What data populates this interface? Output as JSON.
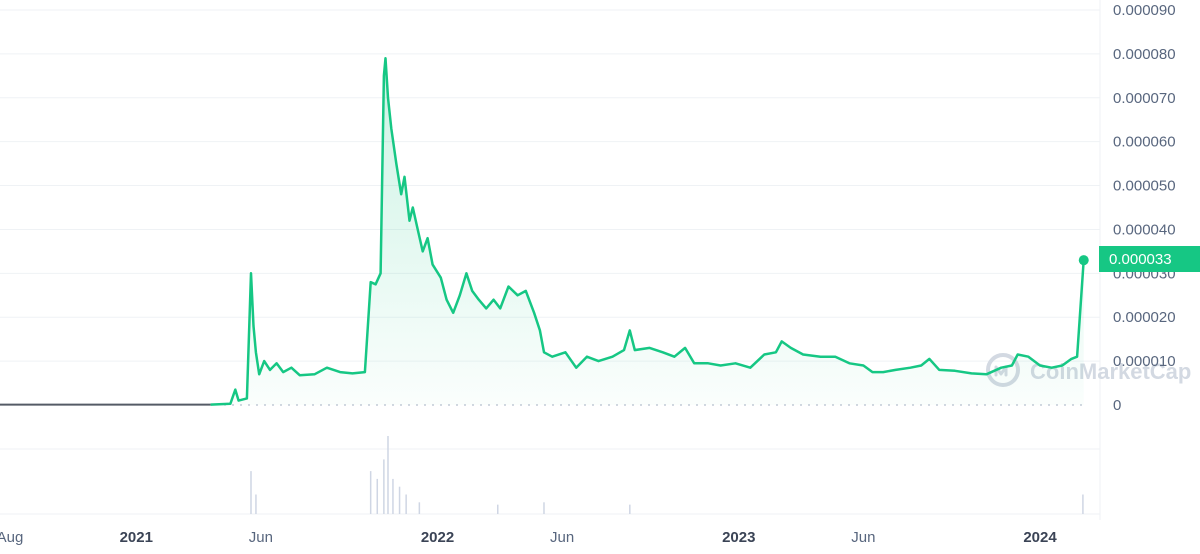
{
  "chart_data": {
    "type": "area",
    "title": "",
    "xlabel": "",
    "ylabel": "",
    "ylim": [
      0,
      9e-05
    ],
    "grid": true,
    "y_ticks": [
      "0",
      "0.000010",
      "0.000020",
      "0.000030",
      "0.000040",
      "0.000050",
      "0.000060",
      "0.000070",
      "0.000080",
      "0.000090"
    ],
    "y_tick_values": [
      0,
      1e-05,
      2e-05,
      3e-05,
      4e-05,
      5e-05,
      6e-05,
      7e-05,
      8e-05,
      9e-05
    ],
    "x_ticks": [
      {
        "label": "Aug",
        "date": "2020-08-01",
        "major": false
      },
      {
        "label": "2021",
        "date": "2021-01-01",
        "major": true
      },
      {
        "label": "Jun",
        "date": "2021-06-01",
        "major": false
      },
      {
        "label": "2022",
        "date": "2022-01-01",
        "major": true
      },
      {
        "label": "Jun",
        "date": "2022-06-01",
        "major": false
      },
      {
        "label": "2023",
        "date": "2023-01-01",
        "major": true
      },
      {
        "label": "Jun",
        "date": "2023-06-01",
        "major": false
      },
      {
        "label": "2024",
        "date": "2024-01-01",
        "major": true
      }
    ],
    "current_price_label": "0.000033",
    "current_price": 3.3e-05,
    "series": [
      {
        "values": [
          [
            "2020-07-01",
            1e-07
          ],
          [
            "2020-10-01",
            1e-07
          ],
          [
            "2021-01-01",
            1e-07
          ],
          [
            "2021-04-01",
            1e-07
          ],
          [
            "2021-04-25",
            3e-07
          ],
          [
            "2021-05-01",
            3.5e-06
          ],
          [
            "2021-05-05",
            1e-06
          ],
          [
            "2021-05-15",
            1.5e-06
          ],
          [
            "2021-05-20",
            3e-05
          ],
          [
            "2021-05-23",
            1.8e-05
          ],
          [
            "2021-05-26",
            1.2e-05
          ],
          [
            "2021-05-30",
            7e-06
          ],
          [
            "2021-06-05",
            1e-05
          ],
          [
            "2021-06-12",
            8e-06
          ],
          [
            "2021-06-20",
            9.5e-06
          ],
          [
            "2021-06-28",
            7.5e-06
          ],
          [
            "2021-07-08",
            8.5e-06
          ],
          [
            "2021-07-18",
            6.8e-06
          ],
          [
            "2021-08-05",
            7e-06
          ],
          [
            "2021-08-20",
            8.5e-06
          ],
          [
            "2021-09-05",
            7.5e-06
          ],
          [
            "2021-09-20",
            7.2e-06
          ],
          [
            "2021-10-05",
            7.5e-06
          ],
          [
            "2021-10-12",
            2.8e-05
          ],
          [
            "2021-10-18",
            2.75e-05
          ],
          [
            "2021-10-24",
            3e-05
          ],
          [
            "2021-10-28",
            7.5e-05
          ],
          [
            "2021-10-30",
            7.9e-05
          ],
          [
            "2021-11-02",
            7e-05
          ],
          [
            "2021-11-06",
            6.3e-05
          ],
          [
            "2021-11-12",
            5.5e-05
          ],
          [
            "2021-11-18",
            4.8e-05
          ],
          [
            "2021-11-22",
            5.2e-05
          ],
          [
            "2021-11-28",
            4.2e-05
          ],
          [
            "2021-12-02",
            4.5e-05
          ],
          [
            "2021-12-08",
            4e-05
          ],
          [
            "2021-12-14",
            3.5e-05
          ],
          [
            "2021-12-20",
            3.8e-05
          ],
          [
            "2021-12-26",
            3.2e-05
          ],
          [
            "2022-01-05",
            2.9e-05
          ],
          [
            "2022-01-12",
            2.4e-05
          ],
          [
            "2022-01-20",
            2.1e-05
          ],
          [
            "2022-01-28",
            2.5e-05
          ],
          [
            "2022-02-05",
            3e-05
          ],
          [
            "2022-02-12",
            2.6e-05
          ],
          [
            "2022-02-20",
            2.4e-05
          ],
          [
            "2022-03-01",
            2.2e-05
          ],
          [
            "2022-03-10",
            2.4e-05
          ],
          [
            "2022-03-18",
            2.2e-05
          ],
          [
            "2022-03-28",
            2.7e-05
          ],
          [
            "2022-04-08",
            2.5e-05
          ],
          [
            "2022-04-18",
            2.6e-05
          ],
          [
            "2022-04-28",
            2.1e-05
          ],
          [
            "2022-05-05",
            1.7e-05
          ],
          [
            "2022-05-10",
            1.2e-05
          ],
          [
            "2022-05-20",
            1.1e-05
          ],
          [
            "2022-06-05",
            1.2e-05
          ],
          [
            "2022-06-18",
            8.5e-06
          ],
          [
            "2022-07-01",
            1.1e-05
          ],
          [
            "2022-07-15",
            1e-05
          ],
          [
            "2022-08-01",
            1.1e-05
          ],
          [
            "2022-08-15",
            1.25e-05
          ],
          [
            "2022-08-22",
            1.7e-05
          ],
          [
            "2022-08-28",
            1.25e-05
          ],
          [
            "2022-09-15",
            1.3e-05
          ],
          [
            "2022-10-01",
            1.2e-05
          ],
          [
            "2022-10-15",
            1.1e-05
          ],
          [
            "2022-10-28",
            1.3e-05
          ],
          [
            "2022-11-08",
            9.5e-06
          ],
          [
            "2022-11-25",
            9.5e-06
          ],
          [
            "2022-12-10",
            9e-06
          ],
          [
            "2022-12-28",
            9.5e-06
          ],
          [
            "2023-01-15",
            8.5e-06
          ],
          [
            "2023-02-01",
            1.15e-05
          ],
          [
            "2023-02-15",
            1.2e-05
          ],
          [
            "2023-02-22",
            1.45e-05
          ],
          [
            "2023-03-05",
            1.3e-05
          ],
          [
            "2023-03-20",
            1.15e-05
          ],
          [
            "2023-04-10",
            1.1e-05
          ],
          [
            "2023-04-28",
            1.1e-05
          ],
          [
            "2023-05-15",
            9.5e-06
          ],
          [
            "2023-06-01",
            9e-06
          ],
          [
            "2023-06-12",
            7.5e-06
          ],
          [
            "2023-06-25",
            7.5e-06
          ],
          [
            "2023-07-10",
            8e-06
          ],
          [
            "2023-07-28",
            8.5e-06
          ],
          [
            "2023-08-10",
            9e-06
          ],
          [
            "2023-08-20",
            1.05e-05
          ],
          [
            "2023-09-01",
            8e-06
          ],
          [
            "2023-09-20",
            7.8e-06
          ],
          [
            "2023-10-10",
            7.2e-06
          ],
          [
            "2023-10-28",
            7e-06
          ],
          [
            "2023-11-15",
            8.5e-06
          ],
          [
            "2023-11-28",
            9e-06
          ],
          [
            "2023-12-05",
            1.15e-05
          ],
          [
            "2023-12-18",
            1.1e-05
          ],
          [
            "2024-01-01",
            9e-06
          ],
          [
            "2024-01-15",
            8.5e-06
          ],
          [
            "2024-01-28",
            9e-06
          ],
          [
            "2024-02-08",
            1.05e-05
          ],
          [
            "2024-02-15",
            1.1e-05
          ],
          [
            "2024-02-20",
            2.5e-05
          ],
          [
            "2024-02-23",
            3.3e-05
          ]
        ]
      }
    ],
    "volume_spikes": [
      [
        "2021-05-20",
        0.55
      ],
      [
        "2021-05-26",
        0.25
      ],
      [
        "2021-10-12",
        0.55
      ],
      [
        "2021-10-20",
        0.45
      ],
      [
        "2021-10-28",
        0.7
      ],
      [
        "2021-11-02",
        1.0
      ],
      [
        "2021-11-08",
        0.45
      ],
      [
        "2021-11-16",
        0.35
      ],
      [
        "2021-11-24",
        0.25
      ],
      [
        "2021-12-10",
        0.15
      ],
      [
        "2022-03-15",
        0.12
      ],
      [
        "2022-05-10",
        0.15
      ],
      [
        "2022-08-22",
        0.12
      ],
      [
        "2024-02-22",
        0.25
      ]
    ],
    "colors": {
      "line": "#16c784",
      "area_top": "#16c784",
      "pre_launch_line": "#555b66",
      "grid": "#eff2f5",
      "volume": "#cfd6e4",
      "badge": "#16c784"
    }
  },
  "watermark": {
    "text": "CoinMarketCap",
    "icon": "coinmarketcap-logo-icon"
  }
}
